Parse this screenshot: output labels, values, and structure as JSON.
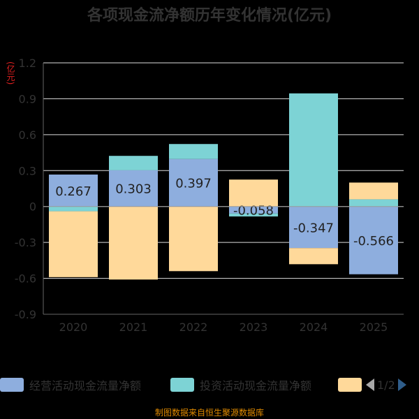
{
  "chart_data": {
    "type": "bar",
    "title": "各项现金流净额历年变化情况(亿元)",
    "unit_label": "(亿元)",
    "categories": [
      "2020",
      "2021",
      "2022",
      "2023",
      "2024",
      "2025"
    ],
    "series": [
      {
        "name": "经营活动现金流量净额",
        "color": "#8eaede",
        "values": [
          0.267,
          0.303,
          0.397,
          -0.058,
          -0.347,
          -0.566
        ]
      },
      {
        "name": "投资活动现金流量净额",
        "color": "#7dd3d5",
        "values": [
          -0.04,
          0.12,
          0.125,
          -0.025,
          0.945,
          0.06
        ]
      },
      {
        "name": "",
        "color": "#ffd99a",
        "values": [
          -0.55,
          -0.61,
          -0.54,
          0.225,
          -0.135,
          0.14
        ]
      }
    ],
    "data_labels": [
      "0.267",
      "0.303",
      "0.397",
      "-0.058",
      "-0.347",
      "-0.566"
    ],
    "y_ticks": [
      "1.2",
      "0.9",
      "0.6",
      "0.3",
      "0",
      "-0.3",
      "-0.6",
      "-0.9"
    ],
    "ylim": [
      -0.9,
      1.2
    ],
    "grid": true,
    "legend_position": "bottom",
    "legend_page": "1/2"
  },
  "colors": {
    "axis": "#666666",
    "grid": "#dddddd",
    "text": "#333333"
  },
  "source": "制图数据来自恒生聚源数据库"
}
